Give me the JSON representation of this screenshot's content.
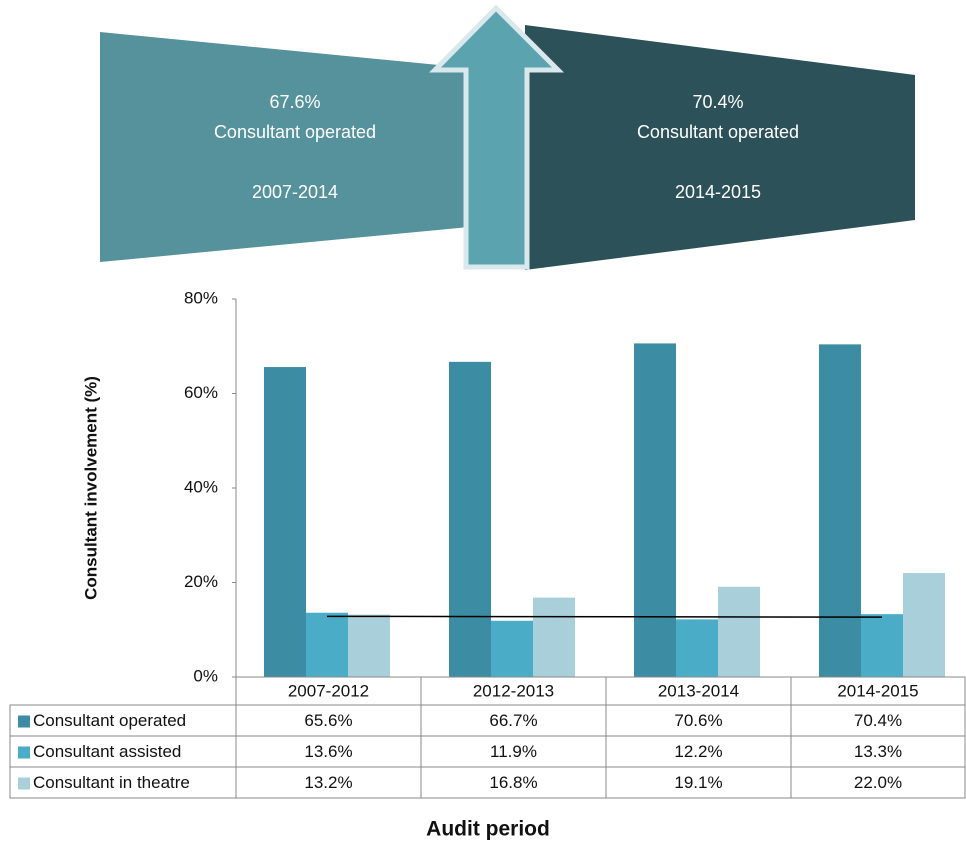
{
  "highlights": [
    {
      "label": "67.6%",
      "text": "Consultant operated",
      "period": "2007-2014"
    },
    {
      "label": "70.4%",
      "text": "Consultant operated",
      "period": "2014-2015"
    }
  ],
  "chart_data": {
    "type": "bar",
    "y_label": "Consultant involvement (%)",
    "x_label": "Audit period",
    "categories": [
      "2007-2012",
      "2012-2013",
      "2013-2014",
      "2014-2015"
    ],
    "series": [
      {
        "name": "Consultant operated",
        "color": "#3c8da3",
        "values": [
          65.6,
          66.7,
          70.6,
          70.4
        ],
        "value_labels": [
          "65.6%",
          "66.7%",
          "70.6%",
          "70.4%"
        ]
      },
      {
        "name": "Consultant assisted",
        "color": "#4aacc6",
        "values": [
          13.6,
          11.9,
          12.2,
          13.3
        ],
        "value_labels": [
          "13.6%",
          "11.9%",
          "12.2%",
          "13.3%"
        ],
        "trendline": true
      },
      {
        "name": "Consultant in theatre",
        "color": "#a9cfdb",
        "values": [
          13.2,
          16.8,
          19.1,
          22.0
        ],
        "value_labels": [
          "13.2%",
          "16.8%",
          "19.1%",
          "22.0%"
        ]
      }
    ],
    "ylim": [
      0,
      80
    ],
    "yticks": [
      {
        "value": 0,
        "label": "0%"
      },
      {
        "value": 20,
        "label": "20%"
      },
      {
        "value": 40,
        "label": "40%"
      },
      {
        "value": 60,
        "label": "60%"
      },
      {
        "value": 80,
        "label": "80%"
      }
    ]
  }
}
